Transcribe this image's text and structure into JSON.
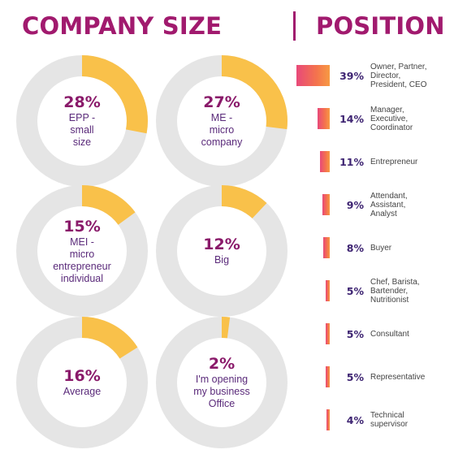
{
  "colors": {
    "title": "#a11a6e",
    "ring_track": "#e5e5e5",
    "ring_fill": "#f9c14a",
    "percent_text": "#8a1a6a",
    "label_text": "#5a2a7a",
    "bar_gradient": [
      "#e8497a",
      "#f4734d",
      "#f79a43"
    ],
    "bar_percent_text": "#3e2472"
  },
  "chart_data": [
    {
      "type": "pie",
      "title": "COMPANY SIZE",
      "slices": [
        {
          "value": 28,
          "percent_label": "28%",
          "label_lines": [
            "EPP -",
            "small",
            "size"
          ]
        },
        {
          "value": 27,
          "percent_label": "27%",
          "label_lines": [
            "ME -",
            "micro",
            "company"
          ]
        },
        {
          "value": 15,
          "percent_label": "15%",
          "label_lines": [
            "MEI -",
            "micro",
            "entrepreneur",
            "individual"
          ]
        },
        {
          "value": 12,
          "percent_label": "12%",
          "label_lines": [
            "Big"
          ]
        },
        {
          "value": 16,
          "percent_label": "16%",
          "label_lines": [
            "Average"
          ]
        },
        {
          "value": 2,
          "percent_label": "2%",
          "label_lines": [
            "I'm opening",
            "my business",
            "Office"
          ]
        }
      ]
    },
    {
      "type": "bar",
      "title": "POSITION",
      "categories": [
        [
          "Owner, Partner,",
          "Director,",
          "President, CEO"
        ],
        [
          "Manager,",
          "Executive,",
          "Coordinator"
        ],
        [
          "Entrepreneur"
        ],
        [
          "Attendant,",
          "Assistant,",
          "Analyst"
        ],
        [
          "Buyer"
        ],
        [
          "Chef, Barista,",
          "Bartender,",
          "Nutritionist"
        ],
        [
          "Consultant"
        ],
        [
          "Representative"
        ],
        [
          "Technical",
          "supervisor"
        ]
      ],
      "values": [
        39,
        14,
        11,
        9,
        8,
        5,
        5,
        5,
        4
      ],
      "value_labels": [
        "39%",
        "14%",
        "11%",
        "9%",
        "8%",
        "5%",
        "5%",
        "5%",
        "4%"
      ]
    }
  ]
}
